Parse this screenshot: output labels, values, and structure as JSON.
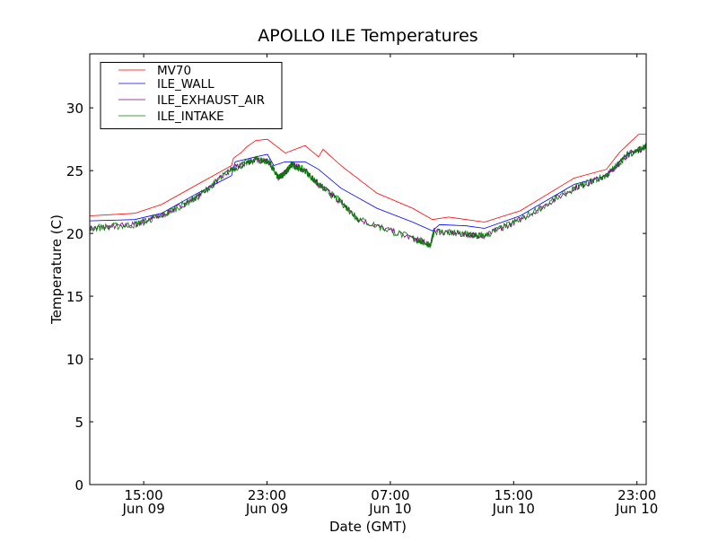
{
  "chart_data": {
    "type": "line",
    "title": "APOLLO ILE Temperatures",
    "xlabel": "Date (GMT)",
    "ylabel": "Temperature (C)",
    "x_units": "hours since Jun 09 00:00 GMT",
    "xlim": [
      11.5,
      47.6
    ],
    "ylim": [
      0,
      34.3
    ],
    "grid": false,
    "legend_position": "top-left",
    "yticks": [
      0,
      5,
      10,
      15,
      20,
      25,
      30
    ],
    "xticks": [
      {
        "value": 15,
        "label_time": "15:00",
        "label_date": "Jun 09"
      },
      {
        "value": 23,
        "label_time": "23:00",
        "label_date": "Jun 09"
      },
      {
        "value": 31,
        "label_time": "07:00",
        "label_date": "Jun 10"
      },
      {
        "value": 39,
        "label_time": "15:00",
        "label_date": "Jun 10"
      },
      {
        "value": 47,
        "label_time": "23:00",
        "label_date": "Jun 10"
      }
    ],
    "series": [
      {
        "name": "MV70",
        "color": "#ff0000",
        "noise": 0,
        "x": [
          11.51,
          14.42,
          16.16,
          18.49,
          20.7,
          20.82,
          21.28,
          21.69,
          22.27,
          23.03,
          24.19,
          25.47,
          26.34,
          26.63,
          27.8,
          30.13,
          32.45,
          33.73,
          34.78,
          37.11,
          39.43,
          42.92,
          45.02,
          45.83,
          46.42,
          47.11,
          47.58
        ],
        "y": [
          21.4,
          21.6,
          22.3,
          23.9,
          25.4,
          26.0,
          26.4,
          26.9,
          27.4,
          27.5,
          26.4,
          27.0,
          26.1,
          26.7,
          25.4,
          23.2,
          22.0,
          21.1,
          21.3,
          20.9,
          21.8,
          24.4,
          25.1,
          26.4,
          27.1,
          27.9,
          27.9
        ]
      },
      {
        "name": "ILE_WALL",
        "color": "#0000ff",
        "noise": 0,
        "x": [
          11.51,
          14.42,
          16.16,
          18.49,
          20.7,
          20.93,
          22.27,
          23.03,
          23.44,
          24.19,
          25.47,
          26.34,
          27.8,
          30.13,
          32.45,
          33.73,
          34.19,
          35.94,
          37.11,
          39.43,
          42.92,
          45.02,
          46.42,
          47.58
        ],
        "y": [
          21.0,
          21.1,
          21.6,
          23.2,
          24.6,
          25.7,
          26.1,
          26.3,
          25.4,
          25.7,
          25.7,
          25.1,
          23.6,
          22.0,
          20.9,
          20.2,
          20.7,
          20.6,
          20.4,
          21.4,
          23.9,
          24.6,
          26.4,
          26.8
        ]
      },
      {
        "name": "ILE_EXHAUST_AIR",
        "color": "#800080",
        "noise": 0.25,
        "x": [
          11.51,
          14.42,
          16.16,
          18.49,
          20.7,
          22.27,
          23.14,
          23.72,
          24.31,
          24.6,
          25.47,
          26.34,
          27.8,
          28.96,
          32.45,
          33.61,
          33.84,
          35.94,
          37.11,
          39.43,
          42.92,
          45.02,
          46.42,
          47.58
        ],
        "y": [
          20.4,
          20.7,
          21.4,
          22.9,
          25.1,
          25.9,
          25.7,
          24.4,
          25.0,
          25.5,
          25.0,
          23.9,
          22.5,
          21.1,
          19.6,
          19.1,
          20.2,
          19.9,
          19.8,
          21.1,
          23.6,
          24.6,
          26.3,
          26.9
        ]
      },
      {
        "name": "ILE_INTAKE",
        "color": "#008000",
        "noise": 0.3,
        "x": [
          11.51,
          14.42,
          16.16,
          18.49,
          20.7,
          22.27,
          23.14,
          23.72,
          24.31,
          24.6,
          25.47,
          26.34,
          27.8,
          28.96,
          32.45,
          33.61,
          33.84,
          35.94,
          37.11,
          39.43,
          42.92,
          45.02,
          46.42,
          47.58
        ],
        "y": [
          20.4,
          20.7,
          21.4,
          22.9,
          25.1,
          25.9,
          25.7,
          24.4,
          25.0,
          25.5,
          25.0,
          23.9,
          22.5,
          21.1,
          19.6,
          19.1,
          20.2,
          19.9,
          19.8,
          21.1,
          23.6,
          24.6,
          26.3,
          26.9
        ]
      }
    ]
  }
}
